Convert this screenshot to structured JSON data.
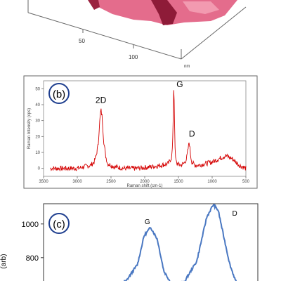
{
  "panel_a": {
    "tick_labels": [
      "50",
      "100"
    ],
    "unit_label": "nm"
  },
  "chart_data": [
    {
      "type": "line",
      "panel_label": "(b)",
      "xlabel": "Raman shift (cm-1)",
      "ylabel": "Raman Intensity (cps)",
      "x_reversed": true,
      "xlim": [
        3500,
        500
      ],
      "ylim": [
        -5,
        55
      ],
      "x_ticks": [
        3500,
        3000,
        2500,
        2000,
        1500,
        1000,
        500
      ],
      "y_ticks": [
        0,
        10,
        20,
        30,
        40,
        50
      ],
      "series_color": "#d40000",
      "x": [
        3400,
        3200,
        3000,
        2900,
        2800,
        2750,
        2720,
        2690,
        2670,
        2650,
        2630,
        2610,
        2580,
        2550,
        2450,
        2300,
        2100,
        1900,
        1750,
        1650,
        1600,
        1585,
        1575,
        1568,
        1560,
        1550,
        1540,
        1520,
        1480,
        1420,
        1380,
        1350,
        1340,
        1330,
        1320,
        1300,
        1260,
        1200,
        1100,
        1000,
        900,
        850,
        800,
        750,
        700,
        650,
        600,
        550,
        500
      ],
      "y": [
        0,
        0,
        0,
        1,
        2,
        4,
        8,
        15,
        28,
        37,
        32,
        18,
        8,
        3,
        1,
        0,
        0,
        1,
        2,
        3,
        7,
        16,
        38,
        55,
        35,
        12,
        5,
        3,
        2,
        3,
        6,
        14,
        17,
        13,
        8,
        4,
        2,
        2,
        3,
        4,
        6,
        7,
        8,
        7,
        6,
        4,
        2,
        1,
        0
      ],
      "annotations": [
        {
          "text": "2D",
          "x": 2650,
          "y": 41
        },
        {
          "text": "G",
          "x": 1480,
          "y": 51
        },
        {
          "text": "D",
          "x": 1300,
          "y": 20
        }
      ]
    },
    {
      "type": "line",
      "panel_label": "(c)",
      "ylabel": "(arb)",
      "ylim": [
        620,
        1120
      ],
      "y_ticks": [
        800,
        1000
      ],
      "series_color": "#4a78c2",
      "x": [
        0,
        1.5,
        2.5,
        3.2,
        3.6,
        4.0,
        4.4,
        4.8,
        5.3,
        6.0,
        6.8,
        7.4,
        7.8,
        8.1,
        8.4,
        8.8,
        9.2
      ],
      "y": [
        620,
        630,
        660,
        760,
        930,
        980,
        910,
        720,
        640,
        650,
        780,
        1040,
        1115,
        1080,
        940,
        760,
        650
      ],
      "annotations": [
        {
          "text": "G",
          "x": 3.8,
          "y": 1000
        },
        {
          "text": "D",
          "x": 9.1,
          "y": 1050
        }
      ]
    }
  ]
}
